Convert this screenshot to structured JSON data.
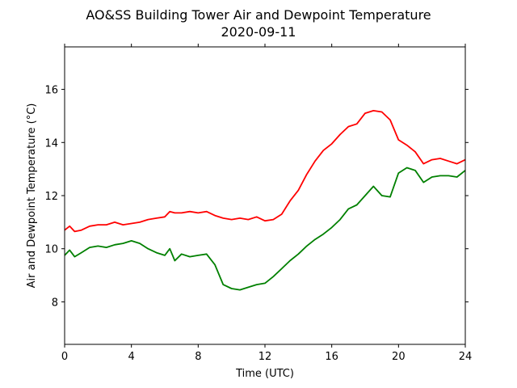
{
  "chart_data": {
    "type": "line",
    "title": "AO&SS Building Tower Air and Dewpoint Temperature",
    "subtitle": "2020-09-11",
    "xlabel": "Time (UTC)",
    "ylabel": "Air and Dewpoint Temperature (°C)",
    "xlim": [
      0,
      24
    ],
    "ylim": [
      6.4,
      17.6
    ],
    "xticks": [
      0,
      4,
      8,
      12,
      16,
      20,
      24
    ],
    "yticks": [
      8,
      10,
      12,
      14,
      16
    ],
    "grid": false,
    "legend": "none",
    "series": [
      {
        "color": "#ff0000",
        "x": [
          0,
          0.3,
          0.6,
          1.0,
          1.5,
          2.0,
          2.5,
          3.0,
          3.5,
          4.0,
          4.5,
          5.0,
          5.5,
          6.0,
          6.3,
          6.6,
          7.0,
          7.5,
          8.0,
          8.5,
          9.0,
          9.5,
          10.0,
          10.5,
          11.0,
          11.5,
          12.0,
          12.5,
          13.0,
          13.5,
          14.0,
          14.5,
          15.0,
          15.5,
          16.0,
          16.5,
          17.0,
          17.5,
          18.0,
          18.5,
          19.0,
          19.5,
          20.0,
          20.5,
          21.0,
          21.5,
          22.0,
          22.5,
          23.0,
          23.5,
          24.0
        ],
        "values": [
          10.7,
          10.85,
          10.65,
          10.7,
          10.85,
          10.9,
          10.9,
          11.0,
          10.9,
          10.95,
          11.0,
          11.1,
          11.15,
          11.2,
          11.4,
          11.35,
          11.35,
          11.4,
          11.35,
          11.4,
          11.25,
          11.15,
          11.1,
          11.15,
          11.1,
          11.2,
          11.05,
          11.1,
          11.3,
          11.8,
          12.2,
          12.8,
          13.3,
          13.7,
          13.95,
          14.3,
          14.6,
          14.7,
          15.1,
          15.2,
          15.15,
          14.85,
          14.1,
          13.9,
          13.65,
          13.2,
          13.35,
          13.4,
          13.3,
          13.2,
          13.35
        ]
      },
      {
        "color": "#008000",
        "x": [
          0,
          0.3,
          0.6,
          1.0,
          1.5,
          2.0,
          2.5,
          3.0,
          3.5,
          4.0,
          4.5,
          5.0,
          5.5,
          6.0,
          6.3,
          6.6,
          7.0,
          7.5,
          8.0,
          8.5,
          9.0,
          9.5,
          10.0,
          10.5,
          11.0,
          11.5,
          12.0,
          12.5,
          13.0,
          13.5,
          14.0,
          14.5,
          15.0,
          15.5,
          16.0,
          16.5,
          17.0,
          17.5,
          18.0,
          18.5,
          19.0,
          19.5,
          20.0,
          20.5,
          21.0,
          21.5,
          22.0,
          22.5,
          23.0,
          23.5,
          24.0
        ],
        "values": [
          9.75,
          9.95,
          9.7,
          9.85,
          10.05,
          10.1,
          10.05,
          10.15,
          10.2,
          10.3,
          10.2,
          10.0,
          9.85,
          9.75,
          10.0,
          9.55,
          9.8,
          9.7,
          9.75,
          9.8,
          9.4,
          8.65,
          8.5,
          8.45,
          8.55,
          8.65,
          8.7,
          8.95,
          9.25,
          9.55,
          9.8,
          10.1,
          10.35,
          10.55,
          10.8,
          11.1,
          11.5,
          11.65,
          12.0,
          12.35,
          12.0,
          11.95,
          12.85,
          13.05,
          12.95,
          12.5,
          12.7,
          12.75,
          12.75,
          12.7,
          12.95
        ]
      }
    ]
  }
}
